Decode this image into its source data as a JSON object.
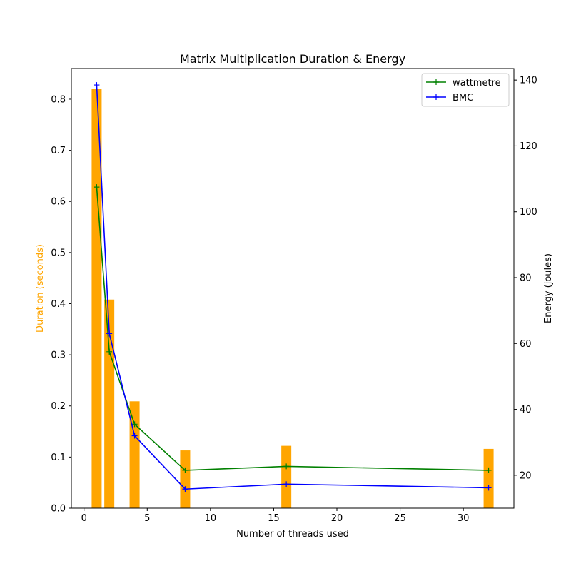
{
  "chart_data": {
    "type": "bar+line",
    "title": "Matrix Multiplication Duration & Energy",
    "xlabel": "Number of threads used",
    "ylabel_left": "Duration (seconds)",
    "ylabel_right": "Energy (joules)",
    "xlim": [
      -1.0,
      34.0
    ],
    "ylim_left": [
      0.0,
      0.86
    ],
    "ylim_right": [
      10.0,
      143.5
    ],
    "x_ticks": [
      0,
      5,
      10,
      15,
      20,
      25,
      30
    ],
    "y_left_ticks": [
      0.0,
      0.1,
      0.2,
      0.3,
      0.4,
      0.5,
      0.6,
      0.7,
      0.8
    ],
    "y_right_ticks": [
      20,
      40,
      60,
      80,
      100,
      120,
      140
    ],
    "bars": {
      "name": "Duration",
      "axis": "left",
      "color": "#FFA500",
      "x": [
        1,
        2,
        4,
        8,
        16,
        32
      ],
      "values": [
        0.82,
        0.408,
        0.209,
        0.113,
        0.122,
        0.116
      ]
    },
    "series": [
      {
        "name": "wattmetre",
        "axis": "right",
        "color": "#008000",
        "marker": "+",
        "x": [
          1,
          2,
          4,
          8,
          16,
          32
        ],
        "values": [
          107.5,
          57.5,
          35.5,
          21.5,
          22.7,
          21.5
        ]
      },
      {
        "name": "BMC",
        "axis": "right",
        "color": "#0000FF",
        "marker": "+",
        "x": [
          1,
          2,
          4,
          8,
          16,
          32
        ],
        "values": [
          138.5,
          63.0,
          32.0,
          15.8,
          17.3,
          16.2
        ]
      }
    ],
    "legend": "top-right",
    "grid": false
  }
}
